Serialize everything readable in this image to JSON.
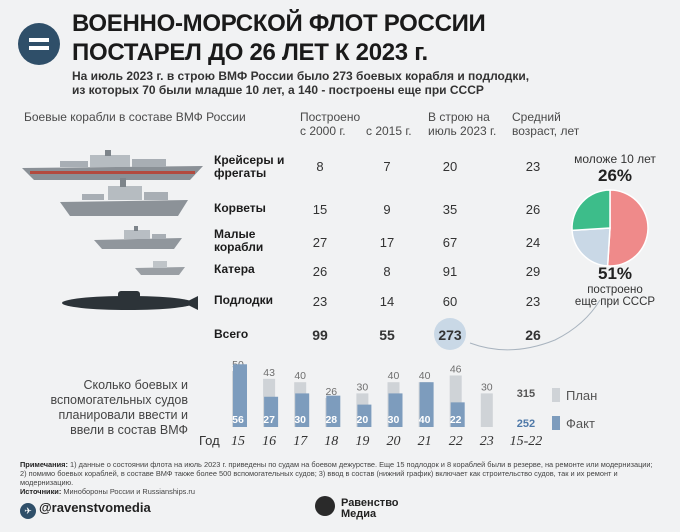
{
  "header": {
    "title_line1": "ВОЕННО-МОРСКОЙ ФЛОТ РОССИИ",
    "title_line2": "ПОСТАРЕЛ ДО 26 ЛЕТ К 2023 г.",
    "subtitle_line1": "На июль 2023 г. в строю ВМФ России было 273 боевых корабля и подлодки,",
    "subtitle_line2": "из которых 70 были младше 10 лет, а 140 - построены еще при СССР"
  },
  "table": {
    "headers": {
      "ships": "Боевые корабли в составе ВМФ России",
      "built_since_2000_l1": "Построено",
      "built_since_2000_l2": "с 2000 г.",
      "since_2015": "с 2015 г.",
      "in_service_l1": "В строю на",
      "in_service_l2": "июль 2023 г.",
      "avg_age_l1": "Средний",
      "avg_age_l2": "возраст, лет"
    },
    "rows": [
      {
        "label_l1": "Крейсеры и",
        "label_l2": "фрегаты",
        "built_2000": "8",
        "since_2015": "7",
        "in_service": "20",
        "avg_age": "23"
      },
      {
        "label_l1": "Корветы",
        "label_l2": "",
        "built_2000": "15",
        "since_2015": "9",
        "in_service": "35",
        "avg_age": "26"
      },
      {
        "label_l1": "Малые",
        "label_l2": "корабли",
        "built_2000": "27",
        "since_2015": "17",
        "in_service": "67",
        "avg_age": "24"
      },
      {
        "label_l1": "Катера",
        "label_l2": "",
        "built_2000": "26",
        "since_2015": "8",
        "in_service": "91",
        "avg_age": "29"
      },
      {
        "label_l1": "Подлодки",
        "label_l2": "",
        "built_2000": "23",
        "since_2015": "14",
        "in_service": "60",
        "avg_age": "23"
      }
    ],
    "total": {
      "label": "Всего",
      "built_2000": "99",
      "since_2015": "55",
      "in_service": "273",
      "avg_age": "26"
    }
  },
  "pie": {
    "top_label": "моложе 10 лет",
    "top_value": "26%",
    "bottom_value": "51%",
    "bottom_label_l1": "построено",
    "bottom_label_l2": "еще при СССР",
    "colors": {
      "young": "#3dbd8a",
      "soviet": "#ef8a8a",
      "other": "#c9d8e6"
    }
  },
  "plan_fact": {
    "title_l1": "Сколько боевых и",
    "title_l2": "вспомогательных судов",
    "title_l3": "планировали ввести и",
    "title_l4": "ввели в состав ВМФ",
    "year_label": "Год",
    "legend_plan": "План",
    "legend_fact": "Факт",
    "period_label": "15-22",
    "period_plan": "315",
    "period_fact": "252",
    "colors": {
      "plan": "#cfd3d7",
      "fact": "#7d9cbd",
      "plan_label": "#6e6e6e",
      "fact_label": "#4f79a8"
    }
  },
  "chart_data": {
    "type": "bar",
    "title": "Сколько боевых и вспомогательных судов планировали ввести и ввели в состав ВМФ",
    "xlabel": "Год",
    "ylabel": "",
    "categories": [
      "15",
      "16",
      "17",
      "18",
      "19",
      "20",
      "21",
      "22",
      "23"
    ],
    "series": [
      {
        "name": "План",
        "values": [
          50,
          43,
          40,
          26,
          30,
          40,
          40,
          46,
          30
        ]
      },
      {
        "name": "Факт",
        "values": [
          56,
          27,
          30,
          28,
          20,
          30,
          40,
          22,
          null
        ]
      }
    ],
    "ylim": [
      0,
      60
    ],
    "totals": {
      "category": "15-22",
      "plan": 315,
      "fact": 252
    }
  },
  "footer": {
    "notes_label": "Примечания:",
    "notes_l1": "1) данные о состоянии флота на июль 2023 г. приведены по судам на боевом дежурстве. Еще 15 подлодок и 8 кораблей были в резерве, на ремонте или модернизации;",
    "notes_l2": "2) помимо боевых кораблей, в составе ВМФ также более 500 вспомогательных судов; 3) ввод в состав (нижний график) включает как строительство судов, так и их ремонт и модернизацию.",
    "sources_label": "Источники:",
    "sources": "Минобороны России и Russianships.ru",
    "telegram": "@ravenstvomedia",
    "brand_l1": "Равенство",
    "brand_l2": "Медиа"
  }
}
